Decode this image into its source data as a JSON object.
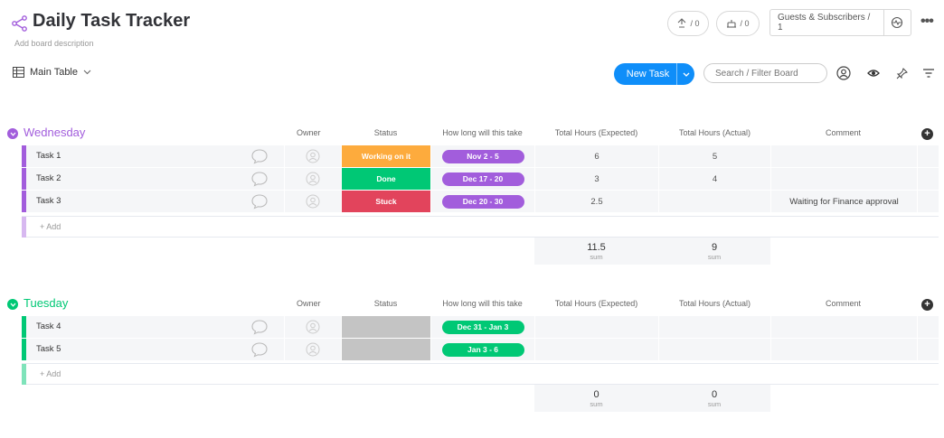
{
  "board": {
    "title": "Daily Task Tracker",
    "description": "Add board description"
  },
  "header": {
    "updates_count": "/ 0",
    "integrations_count": "/ 0",
    "guests_label": "Guests & Subscribers / 1",
    "more": "•••"
  },
  "toolbar": {
    "view_label": "Main Table",
    "new_task_label": "New Task",
    "search_placeholder": "Search / Filter Board"
  },
  "columns": {
    "owner": "Owner",
    "status": "Status",
    "timeline": "How long will this take",
    "expected": "Total Hours (Expected)",
    "actual": "Total Hours (Actual)",
    "comment": "Comment"
  },
  "groups": [
    {
      "name": "Wednesday",
      "color": "#a25ddc",
      "rows": [
        {
          "name": "Task 1",
          "status": "Working on it",
          "status_color": "#fdab3d",
          "timeline": "Nov 2 - 5",
          "expected": "6",
          "actual": "5",
          "comment": ""
        },
        {
          "name": "Task 2",
          "status": "Done",
          "status_color": "#00c875",
          "timeline": "Dec 17 - 20",
          "expected": "3",
          "actual": "4",
          "comment": ""
        },
        {
          "name": "Task 3",
          "status": "Stuck",
          "status_color": "#e2445c",
          "timeline": "Dec 20 - 30",
          "expected": "2.5",
          "actual": "",
          "comment": "Waiting for Finance approval"
        }
      ],
      "add_label": "+ Add",
      "sum_expected": "11.5",
      "sum_actual": "9",
      "sum_label": "sum"
    },
    {
      "name": "Tuesday",
      "color": "#00c875",
      "rows": [
        {
          "name": "Task 4",
          "status": "",
          "status_color": "#c4c4c4",
          "timeline": "Dec 31 - Jan 3",
          "expected": "",
          "actual": "",
          "comment": ""
        },
        {
          "name": "Task 5",
          "status": "",
          "status_color": "#c4c4c4",
          "timeline": "Jan 3 - 6",
          "expected": "",
          "actual": "",
          "comment": ""
        }
      ],
      "add_label": "+ Add",
      "sum_expected": "0",
      "sum_actual": "0",
      "sum_label": "sum"
    }
  ]
}
